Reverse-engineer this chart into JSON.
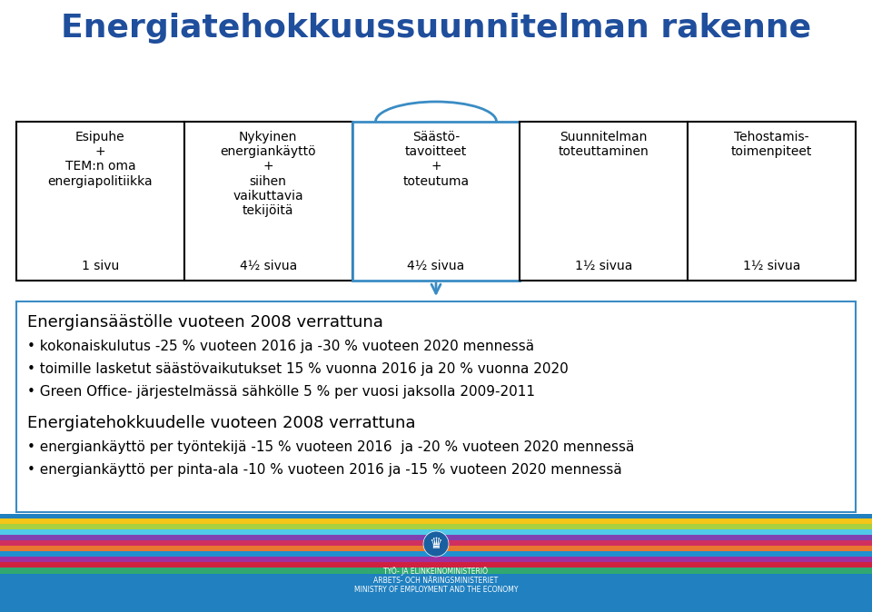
{
  "title": "Energiatehokkuussuunnitelman rakenne",
  "title_color": "#1F4E9C",
  "title_fontsize": 26,
  "boxes": [
    {
      "label": "Esipuhe\n+\nTEM:n oma\nenergiapolitiikka",
      "sublabel": "1 sivu",
      "highlighted": false
    },
    {
      "label": "Nykyinen\nenergiankäyttö\n+\nsiihen\nvaikuttavia\ntekijöitä",
      "sublabel": "4½ sivua",
      "highlighted": false
    },
    {
      "label": "Säästö-\ntavoitteet\n+\ntoteutuma",
      "sublabel": "4½ sivua",
      "highlighted": true
    },
    {
      "label": "Suunnitelman\ntoteuttaminen",
      "sublabel": "1½ sivua",
      "highlighted": false
    },
    {
      "label": "Tehostamis-\ntoimenpiteet",
      "sublabel": "1½ sivua",
      "highlighted": false
    }
  ],
  "box_color": "#000000",
  "highlight_color": "#3A8CC4",
  "section1_title": "Energiansäästölle vuoteen 2008 verrattuna",
  "section1_bullets": [
    "kokonaiskulutus -25 % vuoteen 2016 ja -30 % vuoteen 2020 mennessä",
    "toimille lasketut säästövaikutukset 15 % vuonna 2016 ja 20 % vuonna 2020",
    "Green Office- järjestelmässä sähkölle 5 % per vuosi jaksolla 2009-2011"
  ],
  "section2_title": "Energiatehokkuudelle vuoteen 2008 verrattuna",
  "section2_bullets": [
    "energiankäyttö per työntekijä -15 % vuoteen 2016  ja -20 % vuoteen 2020 mennessä",
    "energiankäyttö per pinta-ala -10 % vuoteen 2016 ja -15 % vuoteen 2020 mennessä"
  ],
  "stripe_colors": [
    "#F5C842",
    "#A8D050",
    "#3AB0D8",
    "#C060A0",
    "#D83040",
    "#E87830",
    "#3AB0D8",
    "#7040A0",
    "#D03060",
    "#30A878"
  ],
  "footer_bg": "#2080C0",
  "ministry_text_color": "#FFFFFF",
  "bg_color": "#FFFFFF",
  "text_color": "#000000"
}
